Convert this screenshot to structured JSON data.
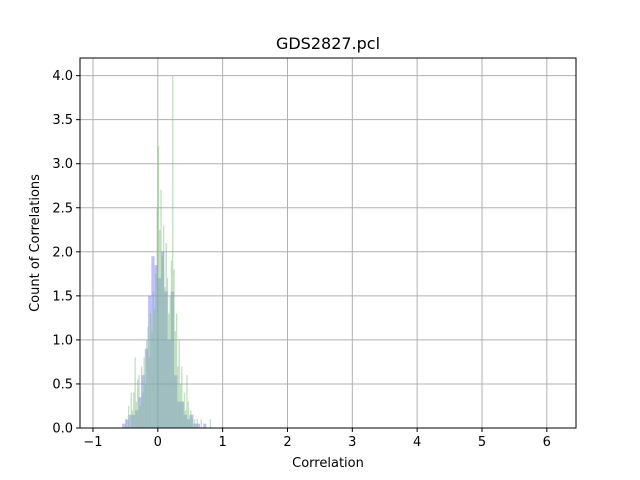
{
  "chart_data": {
    "type": "bar",
    "title": "GDS2827.pcl",
    "xlabel": "Correlation",
    "ylabel": "Count of Correlations",
    "xlim": [
      -1.2,
      6.45
    ],
    "ylim": [
      0,
      4.2
    ],
    "x_ticks": [
      -1,
      0,
      1,
      2,
      3,
      4,
      5,
      6
    ],
    "x_tick_labels": [
      "−1",
      "0",
      "1",
      "2",
      "3",
      "4",
      "5",
      "6"
    ],
    "y_ticks": [
      0.0,
      0.5,
      1.0,
      1.5,
      2.0,
      2.5,
      3.0,
      3.5,
      4.0
    ],
    "y_tick_labels": [
      "0.0",
      "0.5",
      "1.0",
      "1.5",
      "2.0",
      "2.5",
      "3.0",
      "3.5",
      "4.0"
    ],
    "grid": true,
    "series": [
      {
        "color": "#8080ff",
        "bins": [
          {
            "x0": -0.55,
            "x1": -0.5,
            "y": 0.05
          },
          {
            "x0": -0.5,
            "x1": -0.45,
            "y": 0.1
          },
          {
            "x0": -0.45,
            "x1": -0.4,
            "y": 0.15
          },
          {
            "x0": -0.4,
            "x1": -0.35,
            "y": 0.15
          },
          {
            "x0": -0.35,
            "x1": -0.3,
            "y": 0.2
          },
          {
            "x0": -0.3,
            "x1": -0.25,
            "y": 0.35
          },
          {
            "x0": -0.25,
            "x1": -0.2,
            "y": 0.6
          },
          {
            "x0": -0.2,
            "x1": -0.15,
            "y": 0.9
          },
          {
            "x0": -0.15,
            "x1": -0.1,
            "y": 1.5
          },
          {
            "x0": -0.1,
            "x1": -0.05,
            "y": 1.95
          },
          {
            "x0": -0.05,
            "x1": 0.0,
            "y": 1.85
          },
          {
            "x0": 0.0,
            "x1": 0.05,
            "y": 1.7
          },
          {
            "x0": 0.05,
            "x1": 0.1,
            "y": 2.0
          },
          {
            "x0": 0.1,
            "x1": 0.15,
            "y": 1.55
          },
          {
            "x0": 0.15,
            "x1": 0.2,
            "y": 1.0
          },
          {
            "x0": 0.2,
            "x1": 0.25,
            "y": 1.55
          },
          {
            "x0": 0.25,
            "x1": 0.3,
            "y": 0.6
          },
          {
            "x0": 0.3,
            "x1": 0.35,
            "y": 0.3
          },
          {
            "x0": 0.35,
            "x1": 0.4,
            "y": 0.3
          },
          {
            "x0": 0.4,
            "x1": 0.45,
            "y": 0.15
          },
          {
            "x0": 0.45,
            "x1": 0.5,
            "y": 0.1
          },
          {
            "x0": 0.5,
            "x1": 0.55,
            "y": 0.15
          },
          {
            "x0": 0.55,
            "x1": 0.6,
            "y": 0.05
          },
          {
            "x0": 0.6,
            "x1": 0.65,
            "y": 0.05
          },
          {
            "x0": 0.7,
            "x1": 0.75,
            "y": 0.05
          }
        ]
      },
      {
        "color": "#80c080",
        "bins": [
          {
            "x0": -0.5,
            "x1": -0.48,
            "y": 0.1
          },
          {
            "x0": -0.46,
            "x1": -0.44,
            "y": 0.25
          },
          {
            "x0": -0.42,
            "x1": -0.4,
            "y": 0.4
          },
          {
            "x0": -0.4,
            "x1": -0.38,
            "y": 0.2
          },
          {
            "x0": -0.38,
            "x1": -0.36,
            "y": 0.4
          },
          {
            "x0": -0.36,
            "x1": -0.34,
            "y": 0.8
          },
          {
            "x0": -0.34,
            "x1": -0.32,
            "y": 0.3
          },
          {
            "x0": -0.32,
            "x1": -0.3,
            "y": 0.55
          },
          {
            "x0": -0.3,
            "x1": -0.28,
            "y": 0.6
          },
          {
            "x0": -0.28,
            "x1": -0.26,
            "y": 0.25
          },
          {
            "x0": -0.26,
            "x1": -0.24,
            "y": 0.7
          },
          {
            "x0": -0.24,
            "x1": -0.22,
            "y": 0.4
          },
          {
            "x0": -0.22,
            "x1": -0.2,
            "y": 0.8
          },
          {
            "x0": -0.2,
            "x1": -0.18,
            "y": 0.5
          },
          {
            "x0": -0.18,
            "x1": -0.16,
            "y": 1.0
          },
          {
            "x0": -0.16,
            "x1": -0.14,
            "y": 1.15
          },
          {
            "x0": -0.14,
            "x1": -0.12,
            "y": 0.8
          },
          {
            "x0": -0.12,
            "x1": -0.1,
            "y": 1.3
          },
          {
            "x0": -0.1,
            "x1": -0.08,
            "y": 1.1
          },
          {
            "x0": -0.08,
            "x1": -0.06,
            "y": 1.55
          },
          {
            "x0": -0.06,
            "x1": -0.04,
            "y": 1.35
          },
          {
            "x0": -0.04,
            "x1": -0.02,
            "y": 1.75
          },
          {
            "x0": -0.02,
            "x1": 0.0,
            "y": 2.5
          },
          {
            "x0": 0.0,
            "x1": 0.02,
            "y": 3.2
          },
          {
            "x0": 0.02,
            "x1": 0.04,
            "y": 2.25
          },
          {
            "x0": 0.04,
            "x1": 0.06,
            "y": 2.7
          },
          {
            "x0": 0.06,
            "x1": 0.08,
            "y": 1.95
          },
          {
            "x0": 0.08,
            "x1": 0.1,
            "y": 2.3
          },
          {
            "x0": 0.1,
            "x1": 0.12,
            "y": 1.6
          },
          {
            "x0": 0.12,
            "x1": 0.14,
            "y": 2.1
          },
          {
            "x0": 0.14,
            "x1": 0.16,
            "y": 1.7
          },
          {
            "x0": 0.16,
            "x1": 0.18,
            "y": 1.3
          },
          {
            "x0": 0.18,
            "x1": 0.2,
            "y": 1.5
          },
          {
            "x0": 0.2,
            "x1": 0.22,
            "y": 1.9
          },
          {
            "x0": 0.22,
            "x1": 0.24,
            "y": 4.0
          },
          {
            "x0": 0.24,
            "x1": 0.26,
            "y": 1.8
          },
          {
            "x0": 0.26,
            "x1": 0.28,
            "y": 1.1
          },
          {
            "x0": 0.28,
            "x1": 0.3,
            "y": 1.3
          },
          {
            "x0": 0.3,
            "x1": 0.32,
            "y": 0.7
          },
          {
            "x0": 0.32,
            "x1": 0.34,
            "y": 1.0
          },
          {
            "x0": 0.34,
            "x1": 0.36,
            "y": 0.5
          },
          {
            "x0": 0.36,
            "x1": 0.38,
            "y": 0.7
          },
          {
            "x0": 0.38,
            "x1": 0.4,
            "y": 0.3
          },
          {
            "x0": 0.4,
            "x1": 0.42,
            "y": 0.4
          },
          {
            "x0": 0.42,
            "x1": 0.44,
            "y": 0.2
          },
          {
            "x0": 0.44,
            "x1": 0.46,
            "y": 0.6
          },
          {
            "x0": 0.46,
            "x1": 0.48,
            "y": 0.3
          },
          {
            "x0": 0.48,
            "x1": 0.5,
            "y": 0.15
          },
          {
            "x0": 0.5,
            "x1": 0.52,
            "y": 0.2
          },
          {
            "x0": 0.52,
            "x1": 0.54,
            "y": 0.1
          },
          {
            "x0": 0.56,
            "x1": 0.58,
            "y": 0.1
          },
          {
            "x0": 0.6,
            "x1": 0.62,
            "y": 0.1
          },
          {
            "x0": 0.66,
            "x1": 0.68,
            "y": 0.1
          },
          {
            "x0": 0.8,
            "x1": 0.82,
            "y": 0.1
          }
        ]
      }
    ]
  }
}
